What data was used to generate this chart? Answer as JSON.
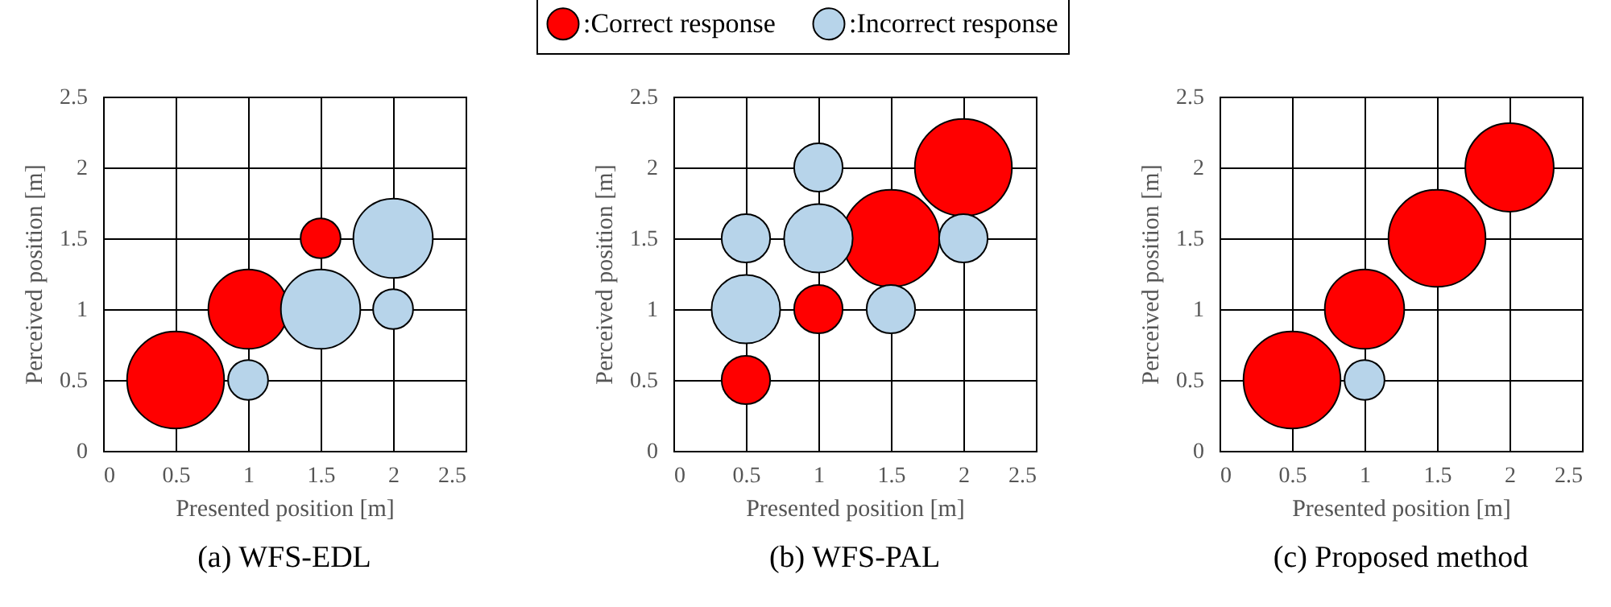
{
  "chart_data": [
    {
      "type": "bubble",
      "title": "(a)  WFS-EDL",
      "xlabel": "Presented position [m]",
      "ylabel": "Perceived position [m]",
      "xlim": [
        0,
        2.5
      ],
      "ylim": [
        0,
        2.5
      ],
      "xticks": [
        0,
        0.5,
        1,
        1.5,
        2,
        2.5
      ],
      "yticks": [
        0,
        0.5,
        1,
        1.5,
        2,
        2.5
      ],
      "grid": true,
      "series": [
        {
          "color": "#ff0000",
          "x": [
            0.5,
            1,
            1.5
          ],
          "values": [
            0.5,
            1,
            1.5
          ],
          "sizes": [
            1,
            0.67,
            0.17
          ]
        },
        {
          "color": "#b7d4ea",
          "x": [
            1,
            1.5,
            2,
            2
          ],
          "values": [
            0.5,
            1,
            1.5,
            1
          ],
          "sizes": [
            0.17,
            0.67,
            0.67,
            0.17
          ]
        }
      ]
    },
    {
      "type": "bubble",
      "title": "(b)  WFS-PAL",
      "xlabel": "Presented position [m]",
      "ylabel": "Perceived position [m]",
      "xlim": [
        0,
        2.5
      ],
      "ylim": [
        0,
        2.5
      ],
      "xticks": [
        0,
        0.5,
        1,
        1.5,
        2,
        2.5
      ],
      "yticks": [
        0,
        0.5,
        1,
        1.5,
        2,
        2.5
      ],
      "grid": true,
      "legend": "top",
      "series": [
        {
          "name": ":Correct response",
          "color": "#ff0000",
          "x": [
            0.5,
            1,
            1.5,
            2
          ],
          "values": [
            0.5,
            1,
            1.5,
            2
          ],
          "sizes": [
            0.25,
            0.25,
            1,
            1
          ]
        },
        {
          "name": ":Incorrect response",
          "color": "#b7d4ea",
          "x": [
            0.5,
            0.5,
            1,
            1,
            1.5,
            2
          ],
          "values": [
            1,
            1.5,
            1.5,
            2,
            1,
            1.5
          ],
          "sizes": [
            0.5,
            0.25,
            0.5,
            0.25,
            0.25,
            0.25
          ]
        }
      ]
    },
    {
      "type": "bubble",
      "title": "(c)  Proposed method",
      "xlabel": "Presented position [m]",
      "ylabel": "Perceived position [m]",
      "xlim": [
        0,
        2.5
      ],
      "ylim": [
        0,
        2.5
      ],
      "xticks": [
        0,
        0.5,
        1,
        1.5,
        2,
        2.5
      ],
      "yticks": [
        0,
        0.5,
        1,
        1.5,
        2,
        2.5
      ],
      "grid": true,
      "series": [
        {
          "color": "#ff0000",
          "x": [
            0.5,
            1,
            1.5,
            2
          ],
          "values": [
            0.5,
            1,
            1.5,
            2
          ],
          "sizes": [
            1,
            0.67,
            1,
            0.83
          ]
        },
        {
          "color": "#b7d4ea",
          "x": [
            1
          ],
          "values": [
            0.5
          ],
          "sizes": [
            0.17
          ]
        }
      ]
    }
  ]
}
